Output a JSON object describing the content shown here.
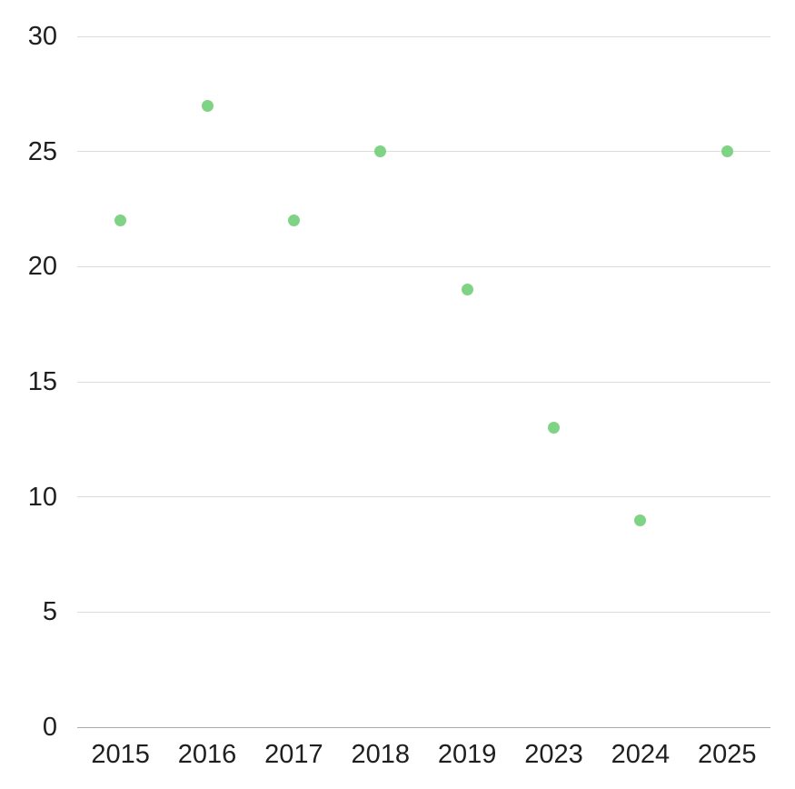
{
  "chart_data": {
    "type": "scatter",
    "categories": [
      "2015",
      "2016",
      "2017",
      "2018",
      "2019",
      "2023",
      "2024",
      "2025"
    ],
    "values": [
      22,
      27,
      22,
      25,
      19,
      13,
      9,
      25
    ],
    "title": "",
    "xlabel": "",
    "ylabel": "",
    "ylim": [
      0,
      30
    ],
    "ytick_step": 5,
    "ytick_labels": [
      "0",
      "5",
      "10",
      "15",
      "20",
      "25",
      "30"
    ],
    "grid": true,
    "legend_position": "none",
    "point_color": "#7ed484",
    "gridline_color": "#dcdcdc",
    "axis_line_color": "#ababab",
    "label_color": "#1f1f1f",
    "background_color": "#ffffff"
  }
}
